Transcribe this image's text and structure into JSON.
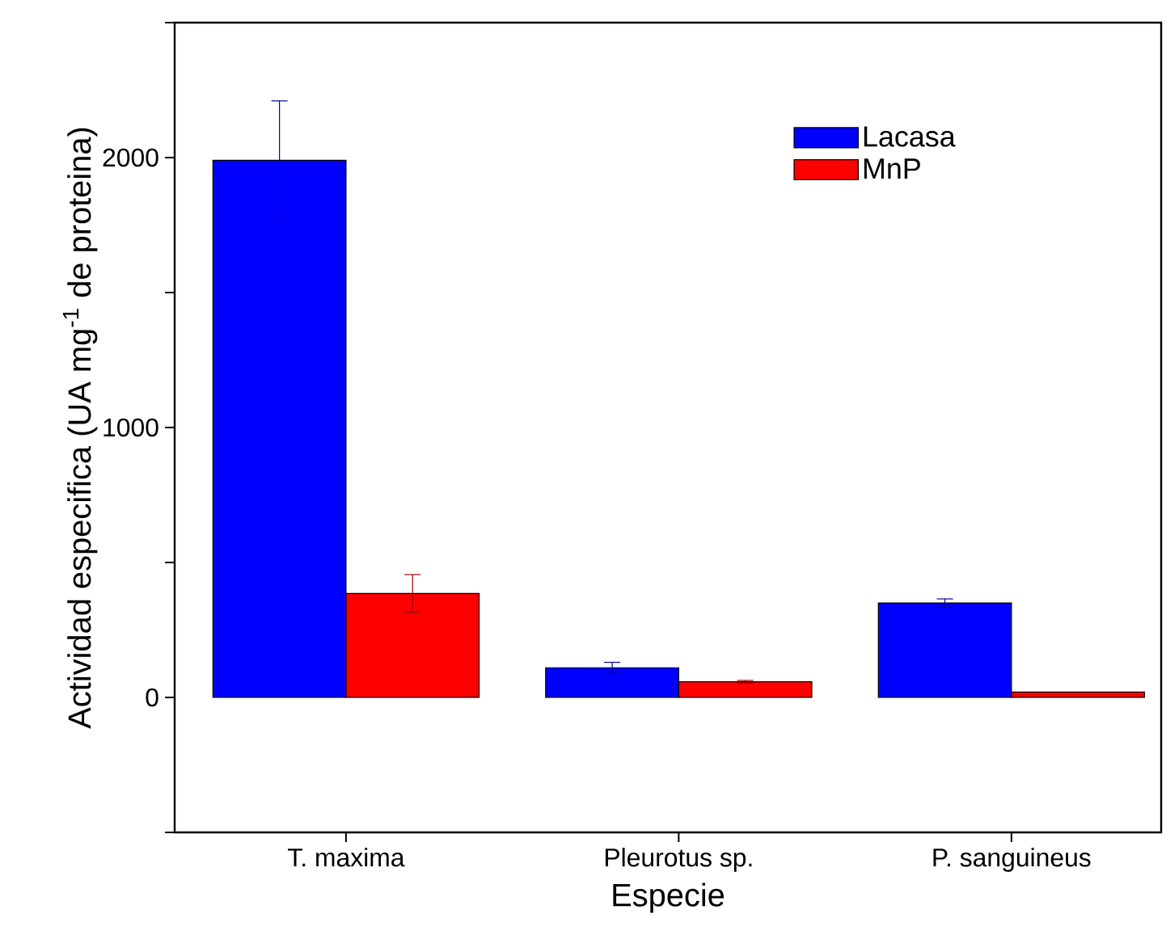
{
  "chart_data": {
    "type": "bar",
    "xlabel": "Especie",
    "ylabel": "Actividad especifica (UA mg$^{-1}$ de proteina)",
    "categories": [
      "T. maxima",
      "Pleurotus sp.",
      "P. sanguineus"
    ],
    "series": [
      {
        "name": "Lacasa",
        "color": "#0000ff",
        "values": [
          1990,
          110,
          350
        ],
        "errors": [
          220,
          20,
          15
        ]
      },
      {
        "name": "MnP",
        "color": "#ff0000",
        "values": [
          385,
          58,
          20
        ],
        "errors": [
          70,
          5,
          null
        ]
      }
    ],
    "ylim": [
      -500,
      2500
    ],
    "yticks": [
      {
        "value": -500,
        "label": null
      },
      0,
      {
        "value": 500,
        "label": null
      },
      1000,
      {
        "value": 1500,
        "label": null
      },
      2000,
      {
        "value": 2500,
        "label": null
      }
    ],
    "legend": "top right",
    "grid": false
  }
}
